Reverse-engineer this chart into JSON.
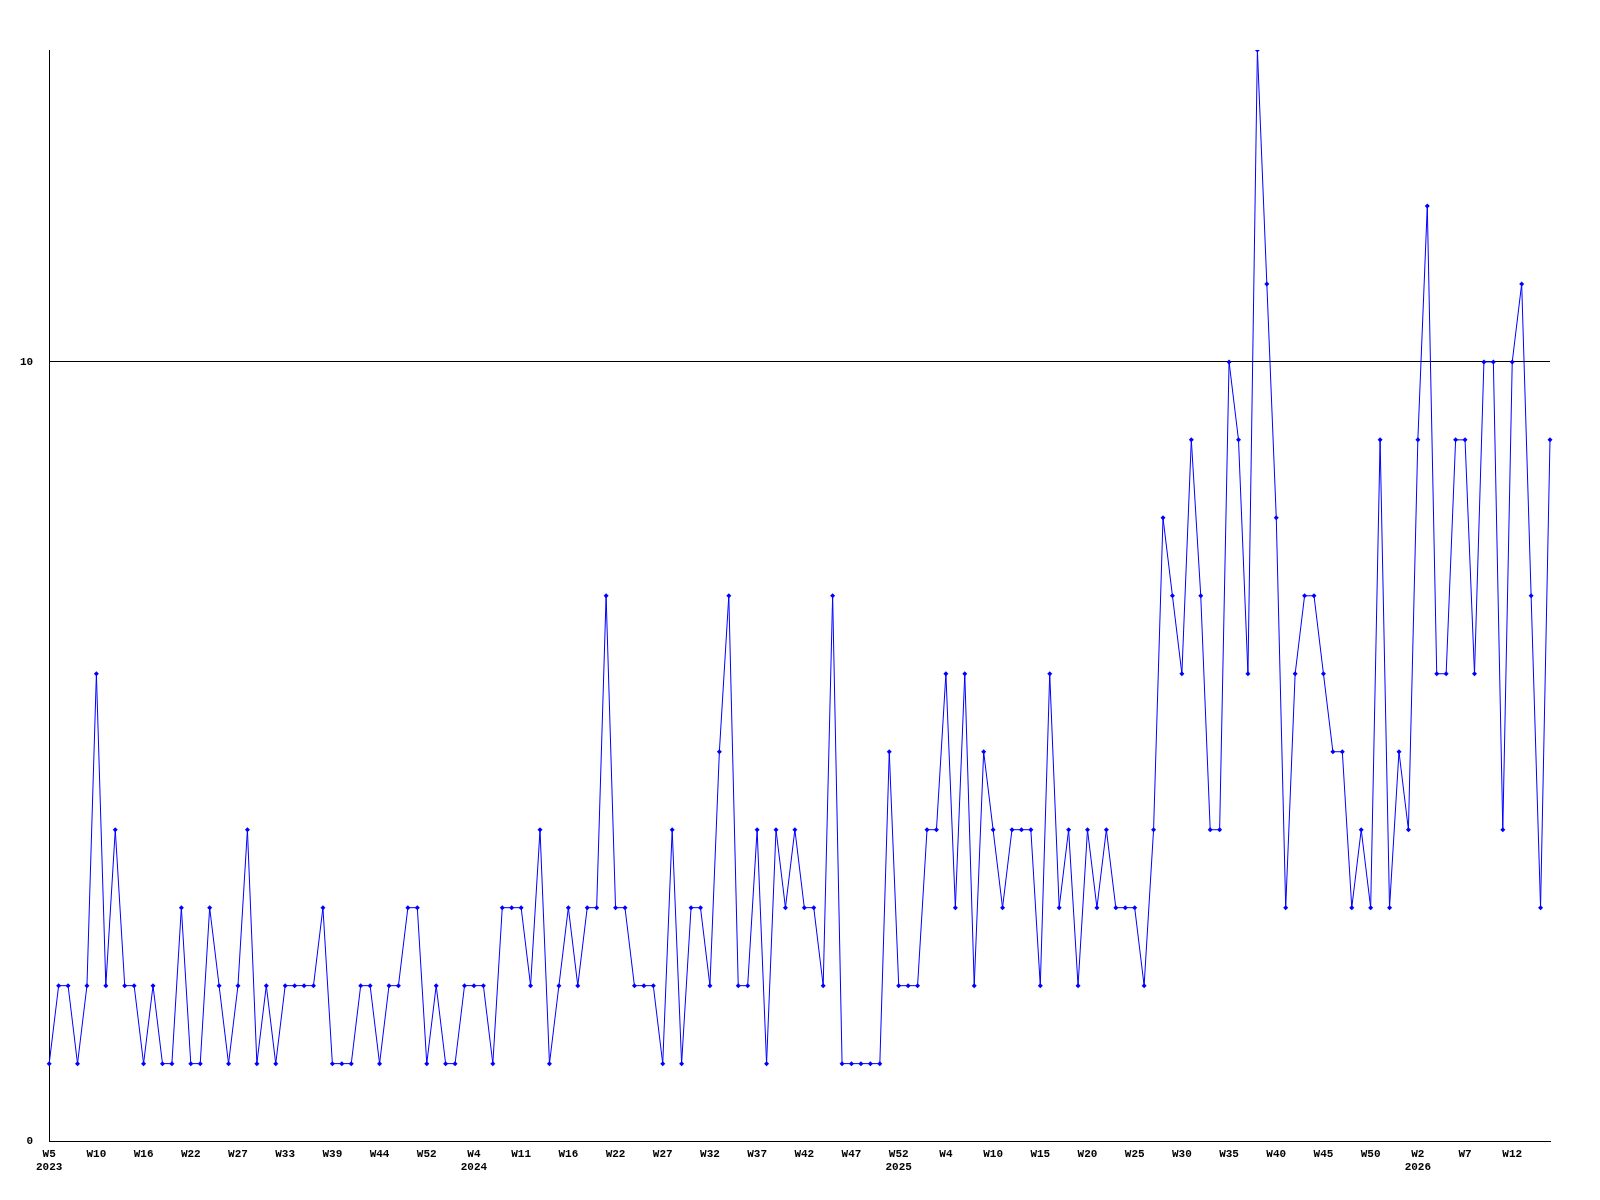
{
  "chart_data": {
    "type": "line",
    "categories": [
      "W5\n2023",
      null,
      null,
      null,
      null,
      "W10",
      null,
      null,
      null,
      null,
      "W16",
      null,
      null,
      null,
      null,
      "W22",
      null,
      null,
      null,
      null,
      "W27",
      null,
      null,
      null,
      null,
      "W33",
      null,
      null,
      null,
      null,
      "W39",
      null,
      null,
      null,
      null,
      "W44",
      null,
      null,
      null,
      null,
      "W52",
      null,
      null,
      null,
      null,
      "W4\n2024",
      null,
      null,
      null,
      null,
      "W11",
      null,
      null,
      null,
      null,
      "W16",
      null,
      null,
      null,
      null,
      "W22",
      null,
      null,
      null,
      null,
      "W27",
      null,
      null,
      null,
      null,
      "W32",
      null,
      null,
      null,
      null,
      "W37",
      null,
      null,
      null,
      null,
      "W42",
      null,
      null,
      null,
      null,
      "W47",
      null,
      null,
      null,
      null,
      "W52\n2025",
      null,
      null,
      null,
      null,
      "W4",
      null,
      null,
      null,
      null,
      "W10",
      null,
      null,
      null,
      null,
      "W15",
      null,
      null,
      null,
      null,
      "W20",
      null,
      null,
      null,
      null,
      "W25",
      null,
      null,
      null,
      null,
      "W30",
      null,
      null,
      null,
      null,
      "W35",
      null,
      null,
      null,
      null,
      "W40",
      null,
      null,
      null,
      null,
      "W45",
      null,
      null,
      null,
      null,
      "W50",
      null,
      null,
      null,
      null,
      "W2\n2026",
      null,
      null,
      null,
      null,
      "W7",
      null,
      null,
      null,
      null,
      "W12",
      null,
      null,
      null,
      null
    ],
    "series": [
      {
        "color": "#0000ff",
        "values": [
          1,
          2,
          2,
          1,
          2,
          6,
          2,
          4,
          2,
          2,
          1,
          2,
          1,
          1,
          3,
          1,
          1,
          3,
          2,
          1,
          2,
          4,
          1,
          2,
          1,
          2,
          2,
          2,
          2,
          3,
          1,
          1,
          1,
          2,
          2,
          1,
          2,
          2,
          3,
          3,
          1,
          2,
          1,
          1,
          2,
          2,
          2,
          1,
          3,
          3,
          3,
          2,
          4,
          1,
          2,
          3,
          2,
          3,
          3,
          7,
          3,
          3,
          2,
          2,
          2,
          1,
          4,
          1,
          3,
          3,
          2,
          5,
          7,
          2,
          2,
          4,
          1,
          4,
          3,
          4,
          3,
          3,
          2,
          7,
          1,
          1,
          1,
          1,
          1,
          5,
          2,
          2,
          2,
          4,
          4,
          6,
          3,
          6,
          2,
          5,
          4,
          3,
          4,
          4,
          4,
          2,
          6,
          3,
          4,
          2,
          4,
          3,
          4,
          3,
          3,
          3,
          2,
          4,
          8,
          7,
          6,
          9,
          7,
          4,
          4,
          10,
          9,
          6,
          14,
          11,
          8,
          3,
          6,
          7,
          7,
          6,
          5,
          5,
          3,
          4,
          3,
          9,
          3,
          5,
          4,
          9,
          12,
          6,
          6,
          9,
          9,
          6,
          10,
          10,
          4,
          10,
          11,
          7,
          3,
          9
        ]
      }
    ],
    "ylim": [
      0,
      14
    ],
    "yticks": [
      0,
      10
    ],
    "grid": "y",
    "marker": "diamond",
    "line_style": "solid",
    "legend": false
  }
}
